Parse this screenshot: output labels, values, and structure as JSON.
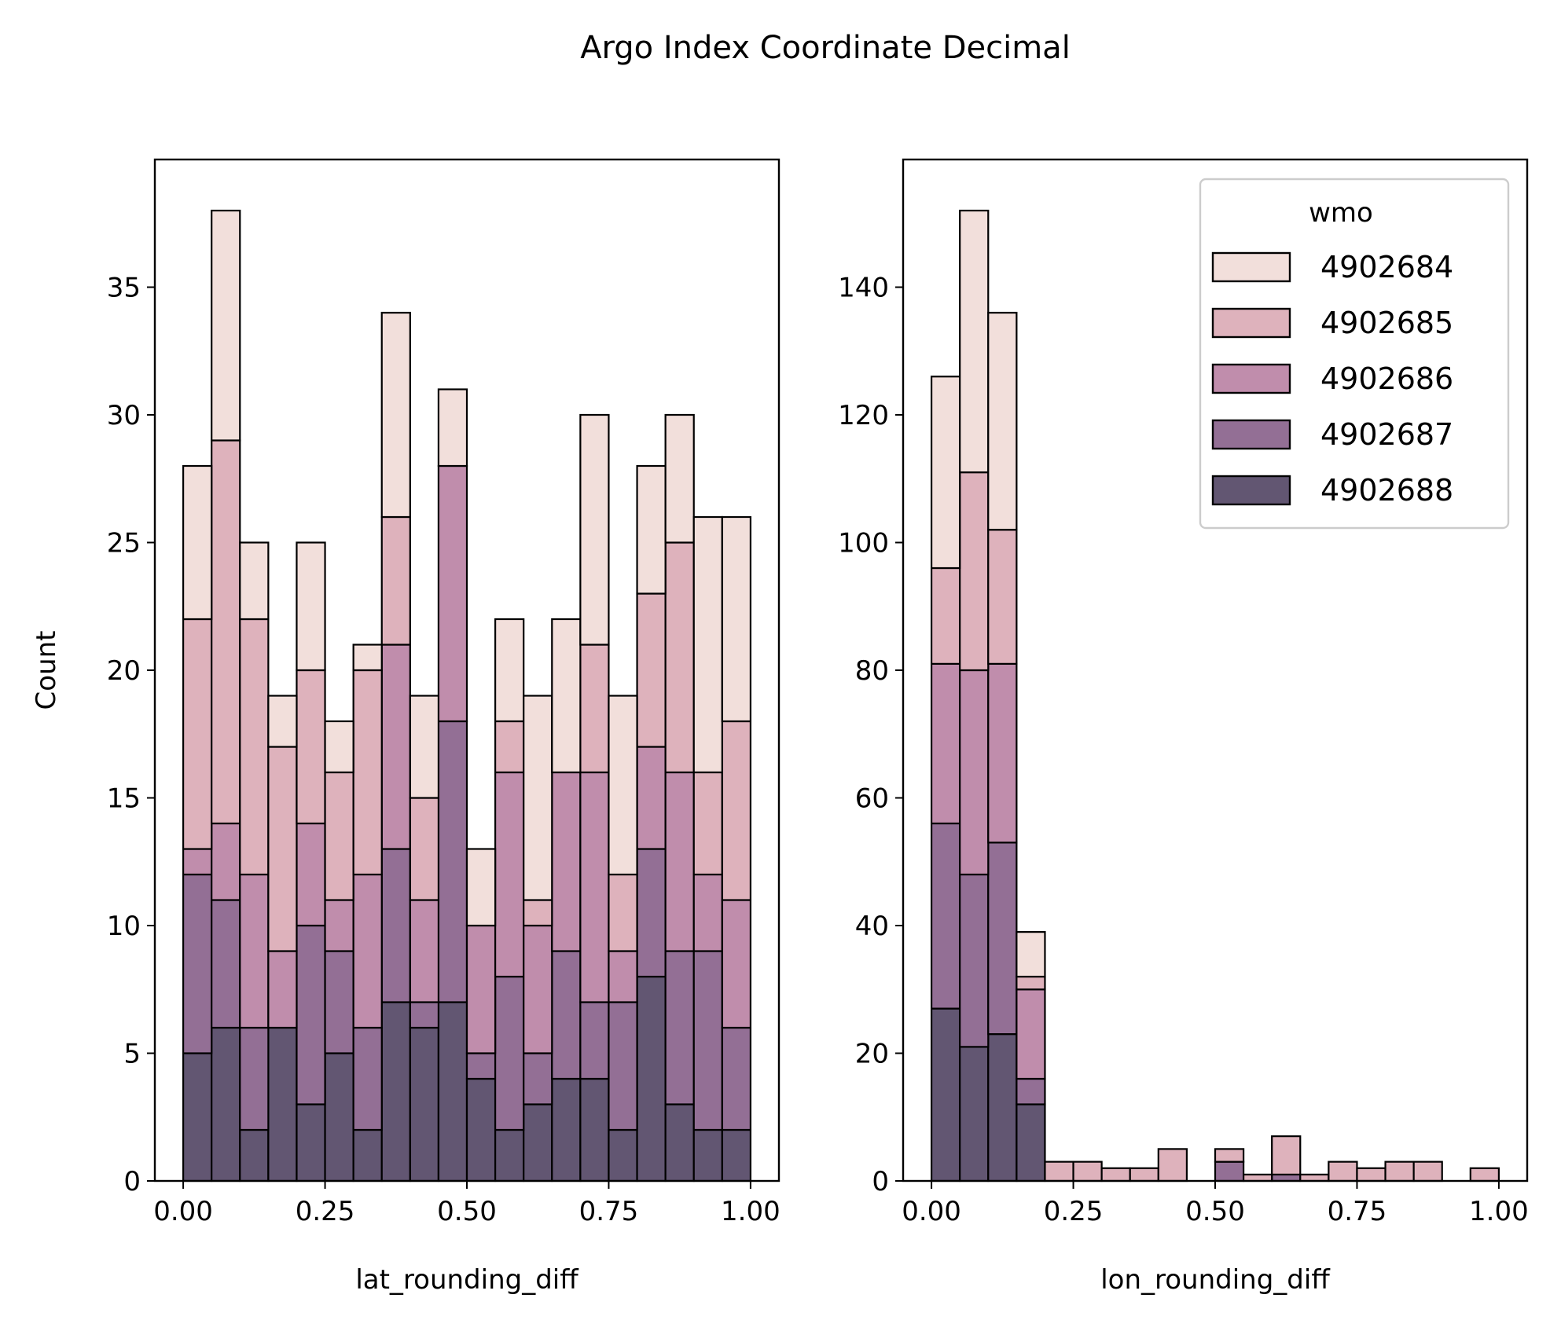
{
  "title": "Argo Index Coordinate Decimal",
  "colors": {
    "4902684": "#f2dfdb",
    "4902685": "#deb2bc",
    "4902686": "#c08dac",
    "4902687": "#936f95",
    "4902688": "#625672",
    "edge": "#000000"
  },
  "legend": {
    "title": "wmo",
    "placement": "upper right",
    "items": [
      "4902684",
      "4902685",
      "4902686",
      "4902687",
      "4902688"
    ]
  },
  "chart_data": [
    {
      "type": "bar",
      "stacked": true,
      "title": "",
      "xlabel": "lat_rounding_diff",
      "ylabel": "Count",
      "xlim": [
        -0.05,
        1.05
      ],
      "ylim": [
        0,
        40
      ],
      "xticks": [
        "0.00",
        "0.25",
        "0.50",
        "0.75",
        "1.00"
      ],
      "yticks": [
        "0",
        "5",
        "10",
        "15",
        "20",
        "25",
        "30",
        "35"
      ],
      "bin_start": 0,
      "bin_width": 0.05,
      "series": [
        {
          "name": "4902688",
          "values": [
            5,
            6,
            2,
            6,
            3,
            5,
            2,
            7,
            6,
            7,
            4,
            2,
            3,
            4,
            4,
            2,
            8,
            3,
            2,
            2
          ]
        },
        {
          "name": "4902687",
          "values": [
            7,
            5,
            4,
            0,
            7,
            4,
            4,
            6,
            1,
            11,
            1,
            6,
            2,
            5,
            3,
            5,
            5,
            6,
            7,
            4
          ]
        },
        {
          "name": "4902686",
          "values": [
            1,
            3,
            6,
            3,
            4,
            2,
            6,
            8,
            4,
            10,
            5,
            8,
            5,
            7,
            9,
            2,
            4,
            7,
            3,
            5
          ]
        },
        {
          "name": "4902685",
          "values": [
            9,
            15,
            10,
            8,
            6,
            5,
            8,
            5,
            4,
            0,
            0,
            2,
            1,
            0,
            5,
            3,
            6,
            9,
            4,
            7
          ]
        },
        {
          "name": "4902684",
          "values": [
            6,
            9,
            3,
            2,
            5,
            2,
            1,
            8,
            4,
            3,
            3,
            4,
            8,
            6,
            9,
            7,
            5,
            5,
            10,
            8
          ]
        }
      ]
    },
    {
      "type": "bar",
      "stacked": true,
      "title": "",
      "xlabel": "lon_rounding_diff",
      "ylabel": "",
      "xlim": [
        -0.05,
        1.05
      ],
      "ylim": [
        0,
        160
      ],
      "xticks": [
        "0.00",
        "0.25",
        "0.50",
        "0.75",
        "1.00"
      ],
      "yticks": [
        "0",
        "20",
        "40",
        "60",
        "80",
        "100",
        "120",
        "140"
      ],
      "bin_start": 0,
      "bin_width": 0.05,
      "series": [
        {
          "name": "4902688",
          "values": [
            27,
            21,
            23,
            12,
            0,
            0,
            0,
            0,
            0,
            0,
            0,
            0,
            0,
            0,
            0,
            0,
            0,
            0,
            0,
            0
          ]
        },
        {
          "name": "4902687",
          "values": [
            29,
            27,
            30,
            4,
            0,
            0,
            0,
            0,
            0,
            0,
            3,
            0,
            1,
            0,
            0,
            0,
            0,
            0,
            0,
            0
          ]
        },
        {
          "name": "4902686",
          "values": [
            25,
            32,
            28,
            14,
            0,
            0,
            0,
            0,
            0,
            0,
            0,
            0,
            0,
            0,
            0,
            0,
            0,
            0,
            0,
            0
          ]
        },
        {
          "name": "4902685",
          "values": [
            15,
            31,
            21,
            2,
            3,
            3,
            2,
            2,
            5,
            0,
            2,
            1,
            6,
            1,
            3,
            2,
            3,
            3,
            0,
            2
          ]
        },
        {
          "name": "4902684",
          "values": [
            30,
            41,
            34,
            7,
            0,
            0,
            0,
            0,
            0,
            0,
            0,
            0,
            0,
            0,
            0,
            0,
            0,
            0,
            0,
            0
          ]
        }
      ]
    }
  ]
}
